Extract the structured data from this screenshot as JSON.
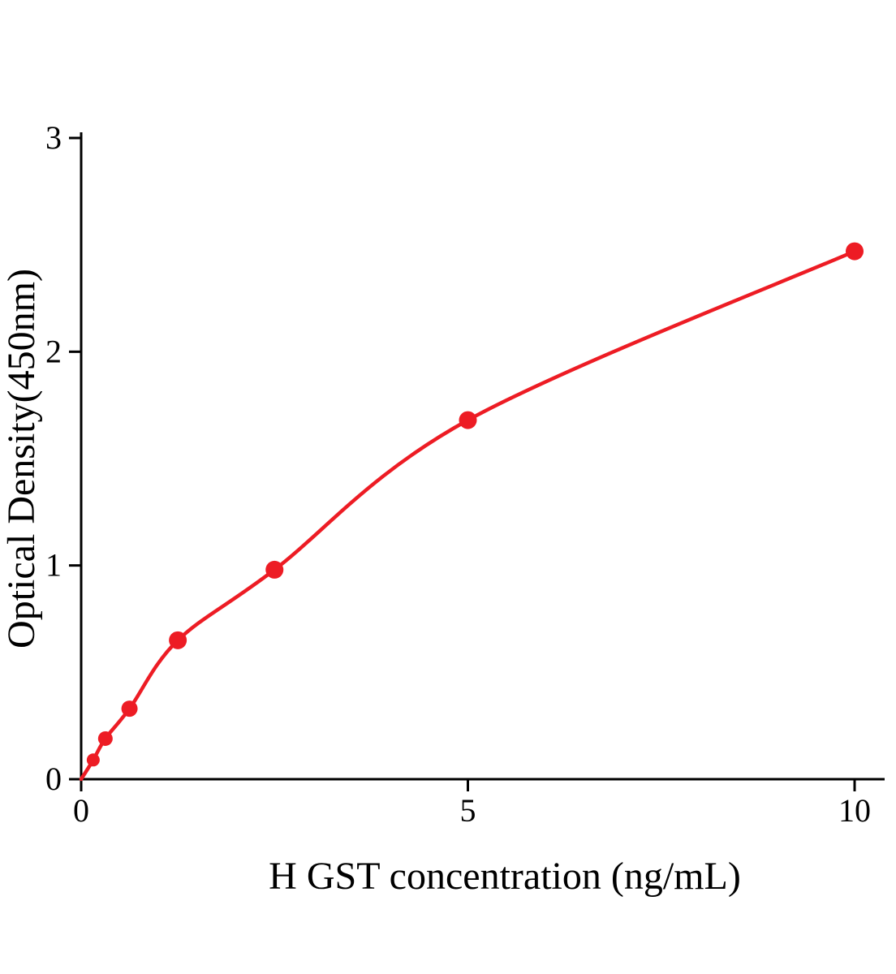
{
  "page": {
    "background_color": "#ffffff",
    "accent_color": "#ed1c24",
    "axis_color": "#000000"
  },
  "chart_data": {
    "type": "scatter",
    "title": "",
    "xlabel": "H GST concentration (ng/mL)",
    "ylabel": "Optical Density(450nm)",
    "xlim": [
      0,
      10
    ],
    "ylim": [
      0,
      3
    ],
    "xticks": [
      0,
      5,
      10
    ],
    "yticks": [
      0,
      1,
      2,
      3
    ],
    "grid": false,
    "legend": "none",
    "curve_color": "#ed1c24",
    "curve_start": {
      "x": 0,
      "y": 0
    },
    "points": {
      "x": [
        0.156,
        0.313,
        0.625,
        1.25,
        2.5,
        5,
        10
      ],
      "y": [
        0.09,
        0.19,
        0.33,
        0.65,
        0.98,
        1.68,
        2.47
      ]
    }
  }
}
